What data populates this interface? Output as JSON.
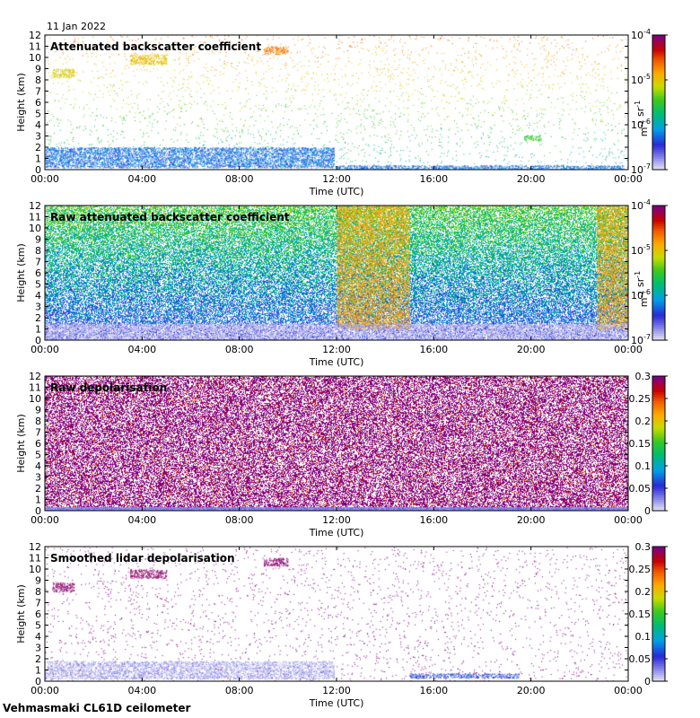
{
  "date": "11 Jan 2022",
  "footer": "Vehmasmaki CL61D ceilometer",
  "chart_data": [
    {
      "type": "heatmap",
      "title": "Attenuated backscatter coefficient",
      "xlabel": "Time (UTC)",
      "ylabel": "Height (km)",
      "x_ticks": [
        "00:00",
        "04:00",
        "08:00",
        "12:00",
        "16:00",
        "20:00",
        "00:00"
      ],
      "y_ticks": [
        "0",
        "1",
        "2",
        "3",
        "4",
        "5",
        "6",
        "7",
        "8",
        "9",
        "10",
        "11",
        "12"
      ],
      "ylim": [
        0,
        12
      ],
      "colorbar": {
        "scale": "log",
        "range": [
          1e-07,
          0.0001
        ],
        "tick_labels": [
          "10-4",
          "10-5",
          "10-6",
          "10-7"
        ],
        "label": "m-1 sr-1"
      },
      "features": [
        {
          "t": [
            0,
            11.9
          ],
          "h": [
            0.2,
            2.0
          ],
          "level": 0.25
        },
        {
          "t": [
            0.3,
            1.2
          ],
          "h": [
            8.2,
            9.0
          ],
          "level": 0.65
        },
        {
          "t": [
            3.5,
            5.0
          ],
          "h": [
            9.4,
            10.3
          ],
          "level": 0.68
        },
        {
          "t": [
            9.0,
            10.0
          ],
          "h": [
            10.3,
            11.0
          ],
          "level": 0.78
        },
        {
          "t": [
            19.7,
            20.4
          ],
          "h": [
            2.6,
            3.1
          ],
          "level": 0.5
        },
        {
          "t": [
            12.0,
            23.8
          ],
          "h": [
            0.0,
            0.4
          ],
          "level": 0.25
        }
      ]
    },
    {
      "type": "heatmap",
      "title": "Raw attenuated backscatter coefficient",
      "xlabel": "Time (UTC)",
      "ylabel": "Height (km)",
      "x_ticks": [
        "00:00",
        "04:00",
        "08:00",
        "12:00",
        "16:00",
        "20:00",
        "00:00"
      ],
      "y_ticks": [
        "0",
        "1",
        "2",
        "3",
        "4",
        "5",
        "6",
        "7",
        "8",
        "9",
        "10",
        "11",
        "12"
      ],
      "ylim": [
        0,
        12
      ],
      "colorbar": {
        "scale": "log",
        "range": [
          1e-07,
          0.0001
        ],
        "tick_labels": [
          "10-4",
          "10-5",
          "10-6",
          "10-7"
        ],
        "label": "m-1 sr-1"
      },
      "features": [
        {
          "t": [
            12.0,
            15.0
          ],
          "h": [
            1.0,
            12.0
          ],
          "level": 0.72
        },
        {
          "t": [
            22.7,
            24.0
          ],
          "h": [
            1.0,
            12.0
          ],
          "level": 0.72
        },
        {
          "t": [
            0,
            24
          ],
          "h": [
            0.0,
            1.5
          ],
          "level": 0.05
        }
      ]
    },
    {
      "type": "heatmap",
      "title": "Raw depolarisation",
      "xlabel": "Time (UTC)",
      "ylabel": "Height (km)",
      "x_ticks": [
        "00:00",
        "04:00",
        "08:00",
        "12:00",
        "16:00",
        "20:00",
        "00:00"
      ],
      "y_ticks": [
        "0",
        "1",
        "2",
        "3",
        "4",
        "5",
        "6",
        "7",
        "8",
        "9",
        "10",
        "11",
        "12"
      ],
      "ylim": [
        0,
        12
      ],
      "colorbar": {
        "scale": "linear",
        "range": [
          0,
          0.3
        ],
        "tick_labels": [
          "0.3",
          "0.25",
          "0.2",
          "0.15",
          "0.1",
          "0.05",
          "0"
        ]
      }
    },
    {
      "type": "heatmap",
      "title": "Smoothed lidar depolarisation",
      "xlabel": "Time (UTC)",
      "ylabel": "Height (km)",
      "x_ticks": [
        "00:00",
        "04:00",
        "08:00",
        "12:00",
        "16:00",
        "20:00",
        "00:00"
      ],
      "y_ticks": [
        "0",
        "1",
        "2",
        "3",
        "4",
        "5",
        "6",
        "7",
        "8",
        "9",
        "10",
        "11",
        "12"
      ],
      "ylim": [
        0,
        12
      ],
      "colorbar": {
        "scale": "linear",
        "range": [
          0,
          0.3
        ],
        "tick_labels": [
          "0.3",
          "0.25",
          "0.2",
          "0.15",
          "0.1",
          "0.05",
          "0"
        ]
      },
      "features": [
        {
          "t": [
            0,
            11.9
          ],
          "h": [
            0.2,
            1.8
          ],
          "level": 0.05
        },
        {
          "t": [
            15.0,
            19.5
          ],
          "h": [
            0.3,
            0.7
          ],
          "level": 0.2
        },
        {
          "t": [
            3.5,
            5.0
          ],
          "h": [
            9.2,
            10.0
          ],
          "level": 1.0
        },
        {
          "t": [
            0.3,
            1.2
          ],
          "h": [
            8.0,
            8.8
          ],
          "level": 1.0
        },
        {
          "t": [
            9.0,
            10.0
          ],
          "h": [
            10.3,
            11.0
          ],
          "level": 1.0
        }
      ]
    }
  ]
}
